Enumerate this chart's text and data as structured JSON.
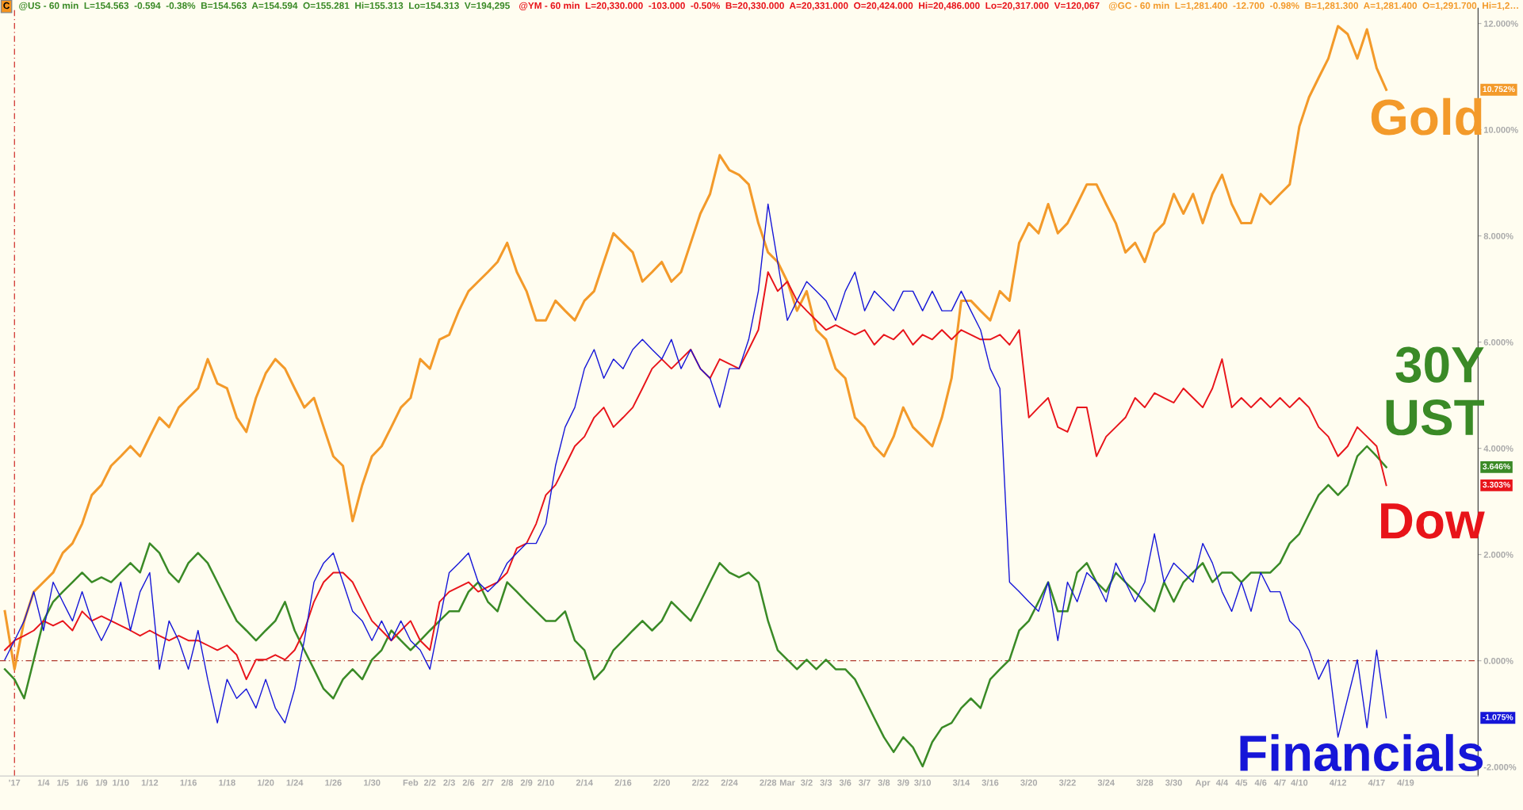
{
  "chart_data": {
    "type": "line",
    "annotations": [
      "C",
      "@US - 60 min  L=154.563  -0.594  -0.38%  B=154.563  A=154.594  O=155.281  Hi=155.313  Lo=154.313  V=194,295",
      "@YM - 60 min  L=20,330.000  -103.000  -0.50%  B=20,330.000  A=20,331.000  O=20,424.000  Hi=20,486.000  Lo=20,317.000  V=120,067",
      "@GC - 60 min  L=1,281.400  -12.700  -0.98%  B=1,281.300  A=1,281.400  O=1,291.700  Hi=1,2…",
      "10.752%",
      "3.646%",
      "3.303%",
      "-1.075%"
    ],
    "categories": [
      null,
      "'17",
      null,
      null,
      "1/4",
      null,
      "1/5",
      null,
      "1/6",
      null,
      "1/9",
      null,
      "1/10",
      null,
      null,
      "1/12",
      null,
      null,
      null,
      "1/16",
      null,
      null,
      null,
      "1/18",
      null,
      null,
      null,
      "1/20",
      null,
      null,
      "1/24",
      null,
      null,
      null,
      "1/26",
      null,
      null,
      null,
      "1/30",
      null,
      null,
      null,
      "Feb",
      null,
      "2/2",
      null,
      "2/3",
      null,
      "2/6",
      null,
      "2/7",
      null,
      "2/8",
      null,
      "2/9",
      null,
      "2/10",
      null,
      null,
      null,
      "2/14",
      null,
      null,
      null,
      "2/16",
      null,
      null,
      null,
      "2/20",
      null,
      null,
      null,
      "2/22",
      null,
      null,
      "2/24",
      null,
      null,
      null,
      "2/28",
      null,
      "Mar",
      null,
      "3/2",
      null,
      "3/3",
      null,
      "3/6",
      null,
      "3/7",
      null,
      "3/8",
      null,
      "3/9",
      null,
      "3/10",
      null,
      null,
      null,
      "3/14",
      null,
      null,
      "3/16",
      null,
      null,
      null,
      "3/20",
      null,
      null,
      null,
      "3/22",
      null,
      null,
      null,
      "3/24",
      null,
      null,
      null,
      "3/28",
      null,
      null,
      "3/30",
      null,
      null,
      "Apr",
      null,
      "4/4",
      null,
      "4/5",
      null,
      "4/6",
      null,
      "4/7",
      null,
      "4/10",
      null,
      null,
      null,
      "4/12",
      null,
      null,
      null,
      "4/17",
      null,
      null,
      "4/19",
      null,
      null,
      null,
      null,
      null,
      null,
      null
    ],
    "ylim": [
      -2.17,
      12.29
    ],
    "yticks": [
      {
        "value": -2,
        "label": "-2.000%"
      },
      {
        "value": 0,
        "label": "0.000%"
      },
      {
        "value": 2,
        "label": "2.000%"
      },
      {
        "value": 4,
        "label": "4.000%"
      },
      {
        "value": 6,
        "label": "6.000%"
      },
      {
        "value": 8,
        "label": "8.000%"
      },
      {
        "value": 10,
        "label": "10.000%"
      },
      {
        "value": 12,
        "label": "12.000%"
      }
    ],
    "grid": false,
    "legend": "right",
    "marker": "none",
    "line_style": "solid",
    "ref_lines": [
      {
        "axis": "y",
        "value": 0,
        "label": null,
        "color": "#b03a2e",
        "line_style": "dashed"
      },
      {
        "axis": "x",
        "value": "'17",
        "label": null,
        "color": "#d0312d",
        "line_style": "dashed"
      }
    ],
    "series": [
      {
        "name": "Gold",
        "color": "#f39a2a",
        "values": [
          0.93,
          -0.16,
          0.75,
          1.3,
          1.48,
          1.66,
          2.03,
          2.21,
          2.58,
          3.12,
          3.31,
          3.67,
          3.85,
          4.04,
          3.85,
          4.22,
          4.58,
          4.4,
          4.77,
          4.95,
          5.13,
          5.68,
          5.22,
          5.13,
          4.58,
          4.31,
          4.95,
          5.41,
          5.68,
          5.5,
          5.13,
          4.77,
          4.95,
          4.4,
          3.85,
          3.67,
          2.63,
          3.31,
          3.85,
          4.04,
          4.4,
          4.77,
          4.95,
          5.68,
          5.5,
          6.05,
          6.14,
          6.59,
          6.96,
          7.14,
          7.32,
          7.51,
          7.87,
          7.32,
          6.96,
          6.41,
          6.41,
          6.78,
          6.59,
          6.41,
          6.78,
          6.96,
          7.51,
          8.05,
          7.87,
          7.69,
          7.14,
          7.32,
          7.51,
          7.14,
          7.32,
          7.87,
          8.42,
          8.79,
          9.52,
          9.24,
          9.15,
          8.97,
          8.24,
          7.69,
          7.51,
          7.14,
          6.59,
          6.96,
          6.23,
          6.05,
          5.5,
          5.32,
          4.58,
          4.4,
          4.04,
          3.85,
          4.22,
          4.77,
          4.4,
          4.22,
          4.04,
          4.58,
          5.32,
          6.78,
          6.78,
          6.59,
          6.41,
          6.96,
          6.78,
          7.87,
          8.24,
          8.05,
          8.6,
          8.05,
          8.24,
          8.6,
          8.97,
          8.97,
          8.6,
          8.24,
          7.69,
          7.87,
          7.51,
          8.05,
          8.24,
          8.79,
          8.42,
          8.79,
          8.24,
          8.79,
          9.15,
          8.6,
          8.24,
          8.24,
          8.79,
          8.6,
          8.79,
          8.97,
          10.06,
          10.61,
          10.98,
          11.34,
          11.95,
          11.8,
          11.34,
          11.89,
          11.16,
          10.752,
          null,
          null,
          null,
          null,
          null,
          null,
          null,
          null,
          null
        ]
      },
      {
        "name": "30Y\nUST",
        "color": "#3a8a26",
        "values": [
          -0.16,
          -0.35,
          -0.71,
          0.02,
          0.75,
          1.11,
          1.3,
          1.48,
          1.66,
          1.48,
          1.57,
          1.48,
          1.66,
          1.84,
          1.66,
          2.21,
          2.03,
          1.66,
          1.48,
          1.84,
          2.03,
          1.84,
          1.48,
          1.11,
          0.75,
          0.57,
          0.38,
          0.57,
          0.75,
          1.11,
          0.57,
          0.2,
          -0.16,
          -0.53,
          -0.71,
          -0.35,
          -0.16,
          -0.35,
          0.02,
          0.2,
          0.57,
          0.38,
          0.2,
          0.38,
          0.57,
          0.75,
          0.93,
          0.93,
          1.3,
          1.48,
          1.11,
          0.93,
          1.48,
          1.3,
          1.11,
          0.93,
          0.75,
          0.75,
          0.93,
          0.38,
          0.2,
          -0.35,
          -0.16,
          0.2,
          0.38,
          0.57,
          0.75,
          0.57,
          0.75,
          1.11,
          0.93,
          0.75,
          1.11,
          1.48,
          1.84,
          1.66,
          1.57,
          1.66,
          1.48,
          0.75,
          0.2,
          0.02,
          -0.16,
          0.02,
          -0.16,
          0.02,
          -0.16,
          -0.16,
          -0.35,
          -0.71,
          -1.08,
          -1.44,
          -1.72,
          -1.44,
          -1.63,
          -1.99,
          -1.53,
          -1.26,
          -1.17,
          -0.89,
          -0.71,
          -0.89,
          -0.35,
          -0.16,
          0.02,
          0.57,
          0.75,
          1.11,
          1.48,
          0.93,
          0.93,
          1.66,
          1.84,
          1.48,
          1.3,
          1.66,
          1.48,
          1.3,
          1.11,
          0.93,
          1.48,
          1.11,
          1.48,
          1.66,
          1.84,
          1.48,
          1.66,
          1.66,
          1.48,
          1.66,
          1.66,
          1.66,
          1.84,
          2.21,
          2.39,
          2.76,
          3.12,
          3.31,
          3.12,
          3.31,
          3.85,
          4.04,
          3.85,
          3.646,
          null,
          null,
          null,
          null,
          null,
          null,
          null,
          null,
          null
        ]
      },
      {
        "name": "Dow",
        "color": "#e8141a",
        "values": [
          0.2,
          0.38,
          0.47,
          0.57,
          0.75,
          0.66,
          0.75,
          0.57,
          0.93,
          0.75,
          0.84,
          0.75,
          0.66,
          0.57,
          0.47,
          0.57,
          0.47,
          0.38,
          0.47,
          0.38,
          0.38,
          0.29,
          0.2,
          0.29,
          0.11,
          -0.35,
          0.02,
          0.02,
          0.11,
          0.02,
          0.2,
          0.57,
          1.11,
          1.48,
          1.66,
          1.66,
          1.48,
          1.11,
          0.75,
          0.57,
          0.38,
          0.57,
          0.75,
          0.38,
          0.2,
          1.11,
          1.3,
          1.39,
          1.48,
          1.3,
          1.39,
          1.48,
          1.66,
          2.12,
          2.21,
          2.58,
          3.12,
          3.31,
          3.67,
          4.04,
          4.22,
          4.58,
          4.77,
          4.4,
          4.58,
          4.77,
          5.13,
          5.5,
          5.68,
          5.5,
          5.68,
          5.86,
          5.5,
          5.32,
          5.68,
          5.59,
          5.5,
          5.86,
          6.23,
          7.32,
          6.96,
          7.14,
          6.78,
          6.59,
          6.41,
          6.23,
          6.32,
          6.23,
          6.14,
          6.23,
          5.95,
          6.14,
          6.05,
          6.23,
          5.95,
          6.14,
          6.05,
          6.23,
          6.05,
          6.23,
          6.14,
          6.05,
          6.05,
          6.14,
          5.95,
          6.23,
          4.58,
          4.77,
          4.95,
          4.4,
          4.31,
          4.77,
          4.77,
          3.85,
          4.22,
          4.4,
          4.58,
          4.95,
          4.77,
          5.04,
          4.95,
          4.86,
          5.13,
          4.95,
          4.77,
          5.13,
          5.68,
          4.77,
          4.95,
          4.77,
          4.95,
          4.77,
          4.95,
          4.77,
          4.95,
          4.77,
          4.4,
          4.22,
          3.85,
          4.04,
          4.4,
          4.22,
          4.04,
          3.303,
          null,
          null,
          null,
          null,
          null,
          null,
          null,
          null,
          null
        ]
      },
      {
        "name": "Financials",
        "color": "#1616d8",
        "values": [
          0.02,
          0.38,
          0.75,
          1.3,
          0.57,
          1.48,
          1.11,
          0.75,
          1.3,
          0.75,
          0.38,
          0.75,
          1.48,
          0.57,
          1.3,
          1.66,
          -0.16,
          0.75,
          0.38,
          -0.16,
          0.57,
          -0.35,
          -1.17,
          -0.35,
          -0.71,
          -0.53,
          -0.89,
          -0.35,
          -0.89,
          -1.17,
          -0.53,
          0.38,
          1.48,
          1.84,
          2.03,
          1.48,
          0.93,
          0.75,
          0.38,
          0.75,
          0.38,
          0.75,
          0.38,
          0.2,
          -0.16,
          0.75,
          1.66,
          1.84,
          2.03,
          1.48,
          1.3,
          1.48,
          1.84,
          2.03,
          2.21,
          2.21,
          2.58,
          3.67,
          4.4,
          4.77,
          5.5,
          5.86,
          5.32,
          5.68,
          5.5,
          5.86,
          6.05,
          5.86,
          5.68,
          6.05,
          5.5,
          5.86,
          5.5,
          5.32,
          4.77,
          5.5,
          5.5,
          6.05,
          6.96,
          8.6,
          7.51,
          6.41,
          6.78,
          7.14,
          6.96,
          6.78,
          6.41,
          6.96,
          7.32,
          6.59,
          6.96,
          6.78,
          6.59,
          6.96,
          6.96,
          6.59,
          6.96,
          6.59,
          6.59,
          6.96,
          6.59,
          6.23,
          5.5,
          5.13,
          1.48,
          1.3,
          1.11,
          0.93,
          1.48,
          0.38,
          1.48,
          1.11,
          1.66,
          1.48,
          1.11,
          1.84,
          1.48,
          1.11,
          1.48,
          2.39,
          1.48,
          1.84,
          1.66,
          1.48,
          2.21,
          1.84,
          1.3,
          0.93,
          1.48,
          0.93,
          1.66,
          1.3,
          1.3,
          0.75,
          0.57,
          0.2,
          -0.35,
          0.02,
          -1.44,
          -0.71,
          0.02,
          -1.26,
          0.2,
          -1.075,
          null,
          null,
          null,
          null,
          null,
          null,
          null,
          null,
          null
        ]
      }
    ]
  }
}
